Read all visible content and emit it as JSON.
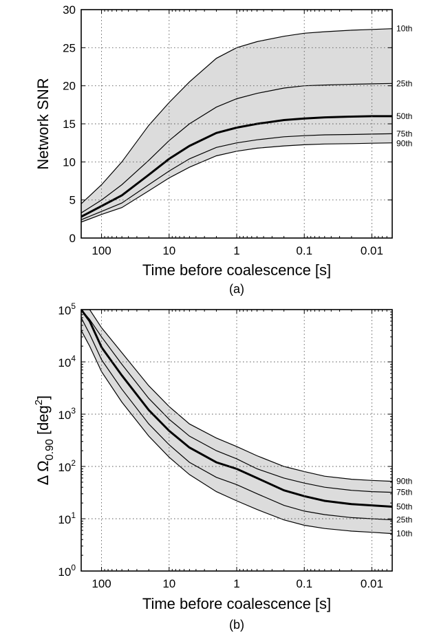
{
  "chart_data": [
    {
      "type": "area",
      "panel_label": "(a)",
      "xlabel": "Time before coalescence [s]",
      "ylabel": "Network SNR",
      "x_scale": "log",
      "x_reversed": true,
      "xlim": [
        200,
        0.005
      ],
      "ylim": [
        0,
        30
      ],
      "y_scale": "linear",
      "grid": true,
      "x_ticks": [
        100,
        10,
        1,
        0.1,
        0.01
      ],
      "x_tick_labels": [
        "100",
        "10",
        "1",
        "0.1",
        "0.01"
      ],
      "y_ticks": [
        0,
        5,
        10,
        15,
        20,
        25,
        30
      ],
      "y_tick_labels": [
        "0",
        "5",
        "10",
        "15",
        "20",
        "25",
        "30"
      ],
      "x": [
        200,
        100,
        50,
        20,
        10,
        5,
        2,
        1,
        0.5,
        0.2,
        0.1,
        0.05,
        0.02,
        0.01,
        0.005
      ],
      "series": [
        {
          "name": "10th",
          "values": [
            4.5,
            7.0,
            10.0,
            14.8,
            17.8,
            20.5,
            23.6,
            25.0,
            25.8,
            26.5,
            26.9,
            27.1,
            27.3,
            27.4,
            27.5
          ]
        },
        {
          "name": "25th",
          "values": [
            3.3,
            5.0,
            7.0,
            10.2,
            12.8,
            15.0,
            17.2,
            18.3,
            19.0,
            19.7,
            20.0,
            20.1,
            20.2,
            20.25,
            20.3
          ]
        },
        {
          "name": "50th",
          "values": [
            2.8,
            4.2,
            5.6,
            8.3,
            10.4,
            12.1,
            13.8,
            14.5,
            15.0,
            15.5,
            15.7,
            15.85,
            15.95,
            16.0,
            16.0
          ]
        },
        {
          "name": "75th",
          "values": [
            2.4,
            3.5,
            4.6,
            7.0,
            8.8,
            10.4,
            11.9,
            12.5,
            12.9,
            13.3,
            13.45,
            13.55,
            13.6,
            13.65,
            13.7
          ]
        },
        {
          "name": "90th",
          "values": [
            2.1,
            3.1,
            4.0,
            6.2,
            7.9,
            9.3,
            10.8,
            11.4,
            11.8,
            12.1,
            12.25,
            12.35,
            12.4,
            12.45,
            12.5
          ]
        }
      ]
    },
    {
      "type": "area",
      "panel_label": "(b)",
      "xlabel": "Time before coalescence [s]",
      "ylabel": "Δ Ω",
      "ylabel_sub": "0.90",
      "ylabel_unit": " [deg",
      "ylabel_sup": "2",
      "ylabel_close": "]",
      "x_scale": "log",
      "x_reversed": true,
      "xlim": [
        200,
        0.005
      ],
      "ylim": [
        1,
        100000
      ],
      "y_scale": "log",
      "grid": true,
      "x_ticks": [
        100,
        10,
        1,
        0.1,
        0.01
      ],
      "x_tick_labels": [
        "100",
        "10",
        "1",
        "0.1",
        "0.01"
      ],
      "y_ticks": [
        1,
        10,
        100,
        1000,
        10000,
        100000
      ],
      "y_tick_bases": [
        "10",
        "10",
        "10",
        "10",
        "10",
        "10"
      ],
      "y_tick_exps": [
        "0",
        "1",
        "2",
        "3",
        "4",
        "5"
      ],
      "x": [
        200,
        150,
        100,
        50,
        20,
        10,
        5,
        2,
        1,
        0.5,
        0.2,
        0.1,
        0.05,
        0.02,
        0.01,
        0.005
      ],
      "series": [
        {
          "name": "90th",
          "values": [
            100000,
            100000,
            45000,
            15000,
            3500,
            1400,
            650,
            350,
            240,
            160,
            100,
            80,
            65,
            57,
            54,
            52
          ]
        },
        {
          "name": "75th",
          "values": [
            100000,
            65000,
            30000,
            9000,
            2000,
            800,
            380,
            200,
            140,
            90,
            60,
            48,
            40,
            35,
            33,
            32
          ]
        },
        {
          "name": "50th",
          "values": [
            100000,
            60000,
            19000,
            5500,
            1200,
            480,
            230,
            120,
            90,
            60,
            35,
            27,
            22,
            19,
            18,
            17
          ]
        },
        {
          "name": "25th",
          "values": [
            70000,
            34000,
            11000,
            3000,
            650,
            260,
            120,
            62,
            45,
            30,
            18,
            14,
            12,
            10.5,
            10,
            9.5
          ]
        },
        {
          "name": "10th",
          "values": [
            40000,
            20000,
            6500,
            1700,
            380,
            150,
            70,
            33,
            22,
            15,
            9.5,
            7.5,
            6.5,
            5.8,
            5.5,
            5.2
          ]
        }
      ]
    }
  ]
}
